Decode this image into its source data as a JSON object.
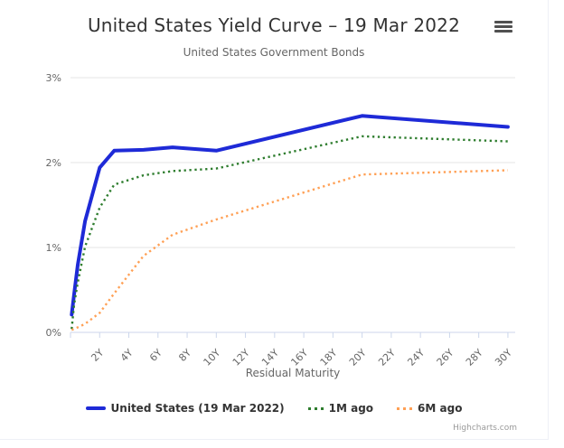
{
  "header": {
    "menu_icon": "hamburger-icon"
  },
  "chart_data": {
    "type": "line",
    "title": "United States Yield Curve – 19 Mar 2022",
    "subtitle": "United States Government Bonds",
    "xlabel": "Residual Maturity",
    "ylabel": "",
    "credits": "Highcharts.com",
    "grid": "horizontal",
    "legend_position": "bottom",
    "xlim": [
      0,
      30.5
    ],
    "ylim": [
      0,
      3
    ],
    "x_ticks": [
      0,
      2,
      4,
      6,
      8,
      10,
      12,
      14,
      16,
      18,
      20,
      22,
      24,
      26,
      28,
      30
    ],
    "x_tick_labels": [
      "",
      "2Y",
      "4Y",
      "6Y",
      "8Y",
      "10Y",
      "12Y",
      "14Y",
      "16Y",
      "18Y",
      "20Y",
      "22Y",
      "24Y",
      "26Y",
      "28Y",
      "30Y"
    ],
    "y_ticks": [
      0,
      1,
      2,
      3
    ],
    "y_tick_labels": [
      "0%",
      "1%",
      "2%",
      "3%"
    ],
    "x_unit_years": [
      0.08,
      0.25,
      0.5,
      1,
      2,
      3,
      5,
      7,
      10,
      20,
      30
    ],
    "series": [
      {
        "name": "United States (19 Mar 2022)",
        "color": "#1e2ad7",
        "dash": "solid",
        "width": 4,
        "values": [
          0.21,
          0.45,
          0.8,
          1.31,
          1.94,
          2.14,
          2.15,
          2.18,
          2.14,
          2.55,
          2.42
        ]
      },
      {
        "name": "1M ago",
        "color": "#2e7d2e",
        "dash": "dotted",
        "width": 2.4,
        "values": [
          0.04,
          0.33,
          0.59,
          1.01,
          1.47,
          1.74,
          1.85,
          1.9,
          1.93,
          2.31,
          2.25
        ]
      },
      {
        "name": "6M ago",
        "color": "#ffa055",
        "dash": "dotted",
        "width": 2.4,
        "values": [
          0.03,
          0.04,
          0.06,
          0.1,
          0.23,
          0.46,
          0.9,
          1.15,
          1.33,
          1.86,
          1.91
        ]
      }
    ],
    "style": {
      "grid_color": "#e6e6e6",
      "axis_color": "#ccd6eb",
      "label_color": "#666666",
      "title_color": "#333333",
      "credits_color": "#999999"
    }
  }
}
